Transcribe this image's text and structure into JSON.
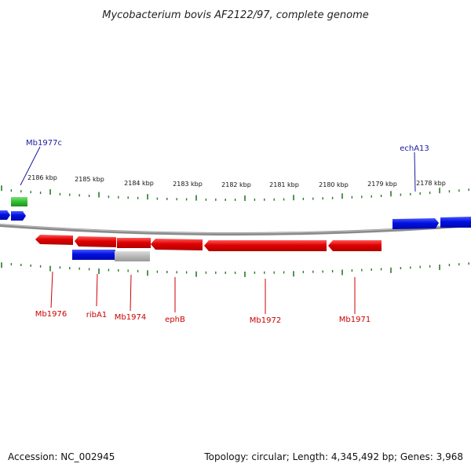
{
  "title": "Mycobacterium bovis AF2122/97, complete genome",
  "footer": {
    "accession": "Accession: NC_002945",
    "summary": "Topology: circular; Length: 4,345,492 bp; Genes: 3,968"
  },
  "colors": {
    "reverse_gene": "#e00000",
    "forward_gene": "#0010e0",
    "pseudo_gene": "#b8b8b8",
    "rna_gene": "#30c030",
    "ticks": "#2a7a2a",
    "backbone": "#8a8a8a"
  },
  "scale_labels": [
    "2186 kbp",
    "2185 kbp",
    "2184 kbp",
    "2183 kbp",
    "2182 kbp",
    "2181 kbp",
    "2180 kbp",
    "2179 kbp",
    "2178 kbp"
  ],
  "gene_labels": [
    {
      "text": "Mb1977c",
      "color": "blue"
    },
    {
      "text": "echA13",
      "color": "blue"
    },
    {
      "text": "Mb1976",
      "color": "red"
    },
    {
      "text": "ribA1",
      "color": "red"
    },
    {
      "text": "Mb1974",
      "color": "red"
    },
    {
      "text": "ephB",
      "color": "red"
    },
    {
      "text": "Mb1972",
      "color": "red"
    },
    {
      "text": "Mb1971",
      "color": "red"
    }
  ]
}
